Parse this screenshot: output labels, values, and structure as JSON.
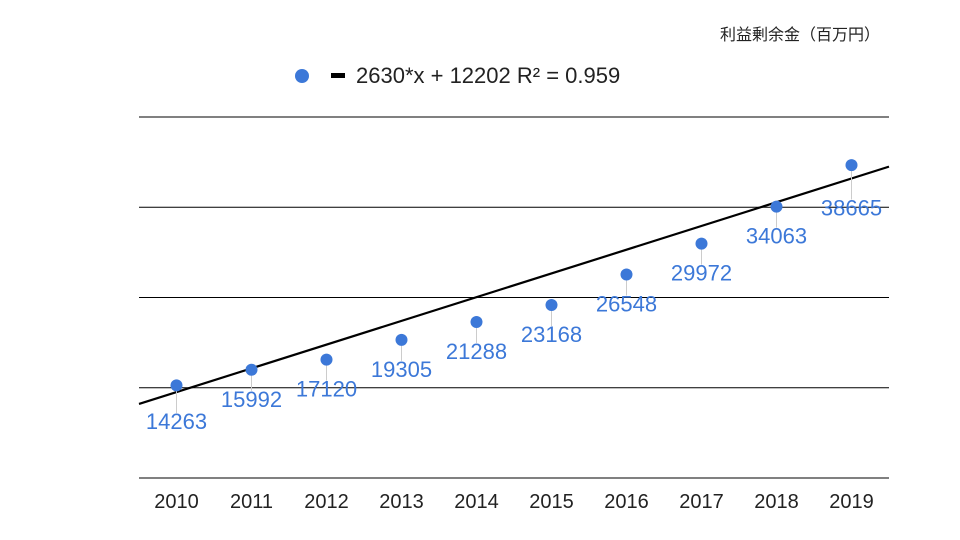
{
  "chart_data": {
    "type": "scatter",
    "unit_label": "利益剰余金（百万円）",
    "categories": [
      "2010",
      "2011",
      "2012",
      "2013",
      "2014",
      "2015",
      "2016",
      "2017",
      "2018",
      "2019"
    ],
    "series": [
      {
        "values": [
          14263,
          15992,
          17120,
          19305,
          21288,
          23168,
          26548,
          29972,
          34063,
          38665
        ],
        "data_labels": [
          "14263",
          "15992",
          "17120",
          "19305",
          "21288",
          "23168",
          "26548",
          "29972",
          "34063",
          "38665"
        ],
        "color": "#3c78d8"
      }
    ],
    "trendline": {
      "type": "linear",
      "slope": 2630,
      "intercept": 12202,
      "r2": 0.959,
      "color": "#000000"
    },
    "legend": {
      "position": "top",
      "text": "2630*x + 12202 R² = 0.959"
    },
    "ylim": [
      4000,
      44000
    ],
    "grid": true
  }
}
